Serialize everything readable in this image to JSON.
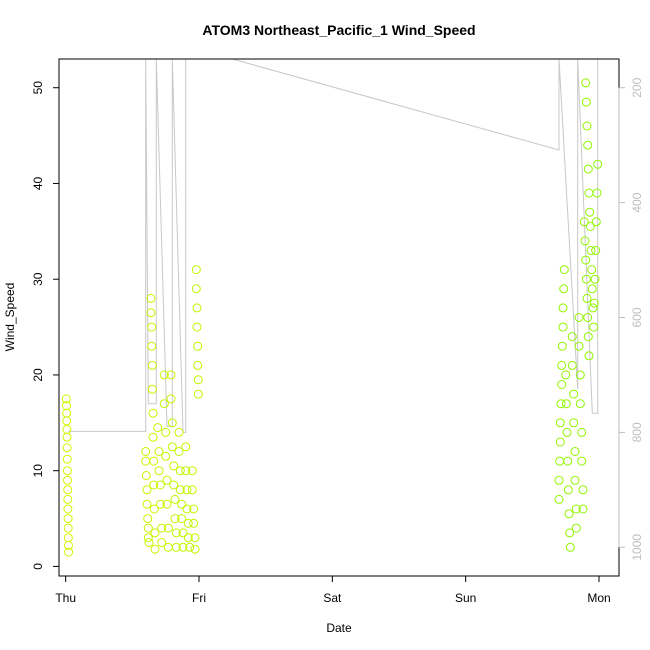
{
  "chart_data": {
    "type": "scatter",
    "title": "ATOM3 Northeast_Pacific_1 Wind_Speed",
    "xlabel": "Date",
    "ylabel": "Wind_Speed",
    "x_domain_days": [
      -0.05,
      4.15
    ],
    "x_ticks": [
      {
        "label": "Thu",
        "value": 0
      },
      {
        "label": "Fri",
        "value": 1
      },
      {
        "label": "Sat",
        "value": 2
      },
      {
        "label": "Sun",
        "value": 3
      },
      {
        "label": "Mon",
        "value": 4
      }
    ],
    "ylim": [
      -1,
      53
    ],
    "y_ticks": [
      0,
      10,
      20,
      30,
      40,
      50
    ],
    "secondary_axis": {
      "ylim": [
        1050,
        150
      ],
      "ticks": [
        200,
        400,
        600,
        800,
        1000
      ],
      "color": "#bdbdbd"
    },
    "grid": false,
    "point_color_low": "#d4f500",
    "point_color_high": "#8cf500",
    "line_color": "#c8c8c8",
    "series": [
      {
        "values": [
          [
            0.005,
            17.5
          ],
          [
            0.006,
            16.8
          ],
          [
            0.007,
            16.0
          ],
          [
            0.008,
            15.2
          ],
          [
            0.009,
            14.3
          ],
          [
            0.01,
            13.5
          ],
          [
            0.011,
            12.4
          ],
          [
            0.012,
            11.2
          ],
          [
            0.013,
            10.0
          ],
          [
            0.014,
            9.0
          ],
          [
            0.015,
            8.0
          ],
          [
            0.016,
            7.0
          ],
          [
            0.017,
            6.0
          ],
          [
            0.018,
            5.0
          ],
          [
            0.019,
            4.0
          ],
          [
            0.02,
            3.0
          ],
          [
            0.021,
            2.2
          ],
          [
            0.022,
            1.5
          ],
          [
            0.6,
            12.0
          ],
          [
            0.6,
            11.0
          ],
          [
            0.605,
            9.5
          ],
          [
            0.61,
            8.0
          ],
          [
            0.61,
            6.5
          ],
          [
            0.615,
            5.0
          ],
          [
            0.62,
            4.0
          ],
          [
            0.62,
            3.0
          ],
          [
            0.625,
            2.5
          ],
          [
            0.64,
            28.0
          ],
          [
            0.64,
            26.5
          ],
          [
            0.645,
            25.0
          ],
          [
            0.645,
            23.0
          ],
          [
            0.65,
            21.0
          ],
          [
            0.65,
            18.5
          ],
          [
            0.655,
            16.0
          ],
          [
            0.655,
            13.5
          ],
          [
            0.66,
            11.0
          ],
          [
            0.66,
            8.5
          ],
          [
            0.665,
            6.0
          ],
          [
            0.67,
            3.5
          ],
          [
            0.67,
            1.8
          ],
          [
            0.69,
            14.5
          ],
          [
            0.7,
            12.0
          ],
          [
            0.7,
            10.0
          ],
          [
            0.71,
            8.5
          ],
          [
            0.71,
            6.5
          ],
          [
            0.72,
            4.0
          ],
          [
            0.72,
            2.5
          ],
          [
            0.74,
            20.0
          ],
          [
            0.74,
            17.0
          ],
          [
            0.75,
            14.0
          ],
          [
            0.75,
            11.5
          ],
          [
            0.76,
            9.0
          ],
          [
            0.76,
            6.5
          ],
          [
            0.77,
            4.0
          ],
          [
            0.77,
            2.0
          ],
          [
            0.79,
            20.0
          ],
          [
            0.79,
            17.5
          ],
          [
            0.8,
            15.0
          ],
          [
            0.8,
            12.5
          ],
          [
            0.81,
            10.5
          ],
          [
            0.81,
            8.5
          ],
          [
            0.82,
            7.0
          ],
          [
            0.82,
            5.0
          ],
          [
            0.83,
            3.5
          ],
          [
            0.83,
            2.0
          ],
          [
            0.85,
            14.0
          ],
          [
            0.85,
            12.0
          ],
          [
            0.86,
            10.0
          ],
          [
            0.86,
            8.0
          ],
          [
            0.87,
            6.5
          ],
          [
            0.87,
            5.0
          ],
          [
            0.88,
            3.5
          ],
          [
            0.88,
            2.0
          ],
          [
            0.9,
            12.5
          ],
          [
            0.9,
            10.0
          ],
          [
            0.91,
            8.0
          ],
          [
            0.91,
            6.0
          ],
          [
            0.92,
            4.5
          ],
          [
            0.92,
            3.0
          ],
          [
            0.93,
            2.0
          ],
          [
            0.95,
            10.0
          ],
          [
            0.95,
            8.0
          ],
          [
            0.96,
            6.0
          ],
          [
            0.96,
            4.5
          ],
          [
            0.97,
            3.0
          ],
          [
            0.97,
            1.8
          ],
          [
            0.98,
            31.0
          ],
          [
            0.98,
            29.0
          ],
          [
            0.985,
            27.0
          ],
          [
            0.985,
            25.0
          ],
          [
            0.99,
            23.0
          ],
          [
            0.99,
            21.0
          ],
          [
            0.995,
            19.5
          ],
          [
            0.995,
            18.0
          ],
          [
            3.7,
            7.0
          ],
          [
            3.7,
            9.0
          ],
          [
            3.705,
            11.0
          ],
          [
            3.71,
            13.0
          ],
          [
            3.71,
            15.0
          ],
          [
            3.715,
            17.0
          ],
          [
            3.72,
            19.0
          ],
          [
            3.72,
            21.0
          ],
          [
            3.725,
            23.0
          ],
          [
            3.73,
            25.0
          ],
          [
            3.73,
            27.0
          ],
          [
            3.735,
            29.0
          ],
          [
            3.74,
            31.0
          ],
          [
            3.75,
            20.0
          ],
          [
            3.755,
            17.0
          ],
          [
            3.76,
            14.0
          ],
          [
            3.765,
            11.0
          ],
          [
            3.77,
            8.0
          ],
          [
            3.775,
            5.5
          ],
          [
            3.78,
            3.5
          ],
          [
            3.785,
            2.0
          ],
          [
            3.8,
            24.0
          ],
          [
            3.8,
            21.0
          ],
          [
            3.81,
            18.0
          ],
          [
            3.81,
            15.0
          ],
          [
            3.82,
            12.0
          ],
          [
            3.82,
            9.0
          ],
          [
            3.83,
            6.0
          ],
          [
            3.83,
            4.0
          ],
          [
            3.85,
            26.0
          ],
          [
            3.85,
            23.0
          ],
          [
            3.86,
            20.0
          ],
          [
            3.86,
            17.0
          ],
          [
            3.87,
            14.0
          ],
          [
            3.87,
            11.0
          ],
          [
            3.88,
            8.0
          ],
          [
            3.88,
            6.0
          ],
          [
            3.89,
            36.0
          ],
          [
            3.895,
            34.0
          ],
          [
            3.9,
            32.0
          ],
          [
            3.905,
            30.0
          ],
          [
            3.91,
            28.0
          ],
          [
            3.915,
            26.0
          ],
          [
            3.92,
            24.0
          ],
          [
            3.925,
            22.0
          ],
          [
            3.9,
            50.5
          ],
          [
            3.905,
            48.5
          ],
          [
            3.91,
            46.0
          ],
          [
            3.915,
            44.0
          ],
          [
            3.92,
            41.5
          ],
          [
            3.925,
            39.0
          ],
          [
            3.93,
            37.0
          ],
          [
            3.935,
            35.5
          ],
          [
            3.94,
            33.0
          ],
          [
            3.945,
            31.0
          ],
          [
            3.95,
            29.0
          ],
          [
            3.955,
            27.0
          ],
          [
            3.96,
            25.0
          ],
          [
            3.965,
            27.5
          ],
          [
            3.97,
            30.0
          ],
          [
            3.975,
            33.0
          ],
          [
            3.98,
            36.0
          ],
          [
            3.985,
            39.0
          ],
          [
            3.99,
            42.0
          ]
        ]
      }
    ],
    "line_points": [
      [
        0.02,
        14.1
      ],
      [
        0.6,
        14.1
      ],
      [
        0.6,
        53.0
      ],
      [
        0.62,
        17.0
      ],
      [
        0.68,
        17.0
      ],
      [
        0.68,
        53.0
      ],
      [
        0.76,
        14.6
      ],
      [
        0.8,
        14.6
      ],
      [
        0.8,
        53.0
      ],
      [
        0.88,
        14.0
      ],
      [
        0.9,
        14.0
      ],
      [
        0.9,
        53.0
      ],
      [
        1.25,
        53.0
      ],
      [
        3.7,
        43.5
      ],
      [
        3.7,
        53.0
      ],
      [
        3.84,
        18.5
      ],
      [
        3.84,
        53.0
      ],
      [
        3.95,
        16.0
      ],
      [
        3.99,
        16.0
      ],
      [
        3.99,
        53.0
      ]
    ]
  }
}
